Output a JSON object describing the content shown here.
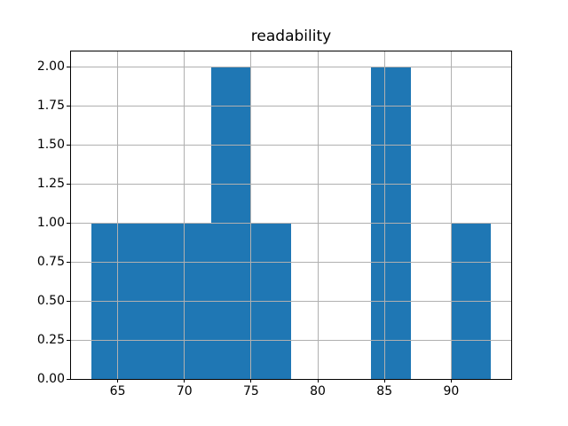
{
  "chart_data": {
    "type": "bar",
    "subtype": "histogram",
    "title": "readability",
    "xlabel": "",
    "ylabel": "",
    "bin_edges": [
      63,
      66,
      69,
      72,
      75,
      78,
      81,
      84,
      87,
      90,
      93
    ],
    "counts": [
      1,
      1,
      1,
      2,
      1,
      0,
      0,
      2,
      0,
      1
    ],
    "xlim": [
      61.5,
      94.5
    ],
    "ylim": [
      0,
      2.1
    ],
    "x_ticks": [
      65,
      70,
      75,
      80,
      85,
      90
    ],
    "x_tick_labels": [
      "65",
      "70",
      "75",
      "80",
      "85",
      "90"
    ],
    "y_ticks": [
      0.0,
      0.25,
      0.5,
      0.75,
      1.0,
      1.25,
      1.5,
      1.75,
      2.0
    ],
    "y_tick_labels": [
      "0.00",
      "0.25",
      "0.50",
      "0.75",
      "1.00",
      "1.25",
      "1.50",
      "1.75",
      "2.00"
    ],
    "grid": true,
    "grid_above_bars": true,
    "legend": null,
    "colors": {
      "bar_fill": "#1f77b4",
      "gridline": "#b0b0b0",
      "spine": "#000000",
      "text": "#000000",
      "background": "#ffffff"
    }
  }
}
